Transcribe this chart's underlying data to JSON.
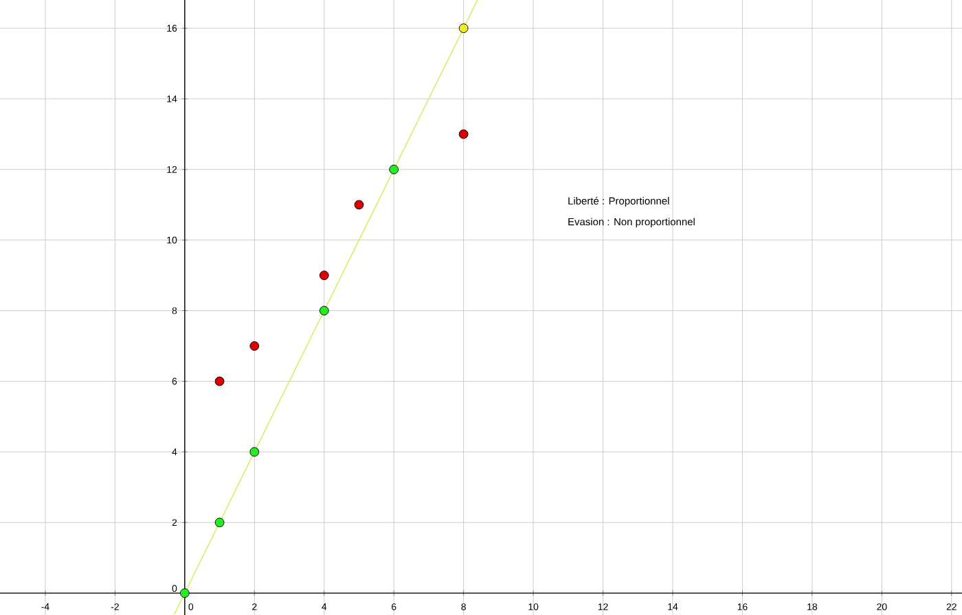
{
  "chart_data": {
    "type": "scatter",
    "x": [
      0,
      1,
      2,
      4,
      6
    ],
    "series": [
      {
        "type": "line",
        "color": "#d4ee6a",
        "x": [
          -0.3,
          8.4
        ],
        "values": [
          -0.6,
          16.8
        ],
        "marker": "none"
      },
      {
        "color": "#22ee22",
        "values": [
          0,
          2,
          4,
          8,
          12
        ],
        "marker": "circle"
      },
      {
        "color": "#eeee22",
        "x": [
          8
        ],
        "values": [
          16
        ],
        "marker": "circle"
      },
      {
        "color": "#dd0000",
        "x": [
          1,
          2,
          4,
          5,
          8
        ],
        "values": [
          6,
          7,
          9,
          11,
          13
        ],
        "marker": "circle"
      }
    ],
    "annotations": [
      "Liberté : Proportionnel",
      "Evasion : Non proportionnel"
    ],
    "xlim": [
      -5.3,
      22.3
    ],
    "ylim": [
      -0.62,
      16.8
    ],
    "xticks": [
      -4,
      -2,
      0,
      2,
      4,
      6,
      8,
      10,
      12,
      14,
      16,
      18,
      20,
      22
    ],
    "yticks": [
      0,
      2,
      4,
      6,
      8,
      10,
      12,
      14,
      16
    ],
    "grid": true
  }
}
